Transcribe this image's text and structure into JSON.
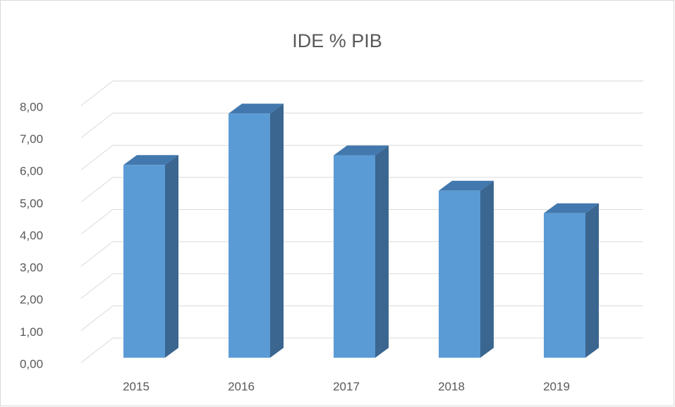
{
  "chart_data": {
    "type": "bar3d",
    "title": "IDE % PIB",
    "categories": [
      "2015",
      "2016",
      "2017",
      "2018",
      "2019"
    ],
    "values": [
      6.0,
      7.6,
      6.3,
      5.2,
      4.5
    ],
    "color": "#5b9bd5",
    "ylim": [
      0,
      8
    ],
    "yticks": [
      {
        "value": 0,
        "label": "0,00"
      },
      {
        "value": 1,
        "label": "1,00"
      },
      {
        "value": 2,
        "label": "2,00"
      },
      {
        "value": 3,
        "label": "3,00"
      },
      {
        "value": 4,
        "label": "4,00"
      },
      {
        "value": 5,
        "label": "5,00"
      },
      {
        "value": 6,
        "label": "6,00"
      },
      {
        "value": 7,
        "label": "7,00"
      },
      {
        "value": 8,
        "label": "8,00"
      }
    ],
    "grid": true
  }
}
